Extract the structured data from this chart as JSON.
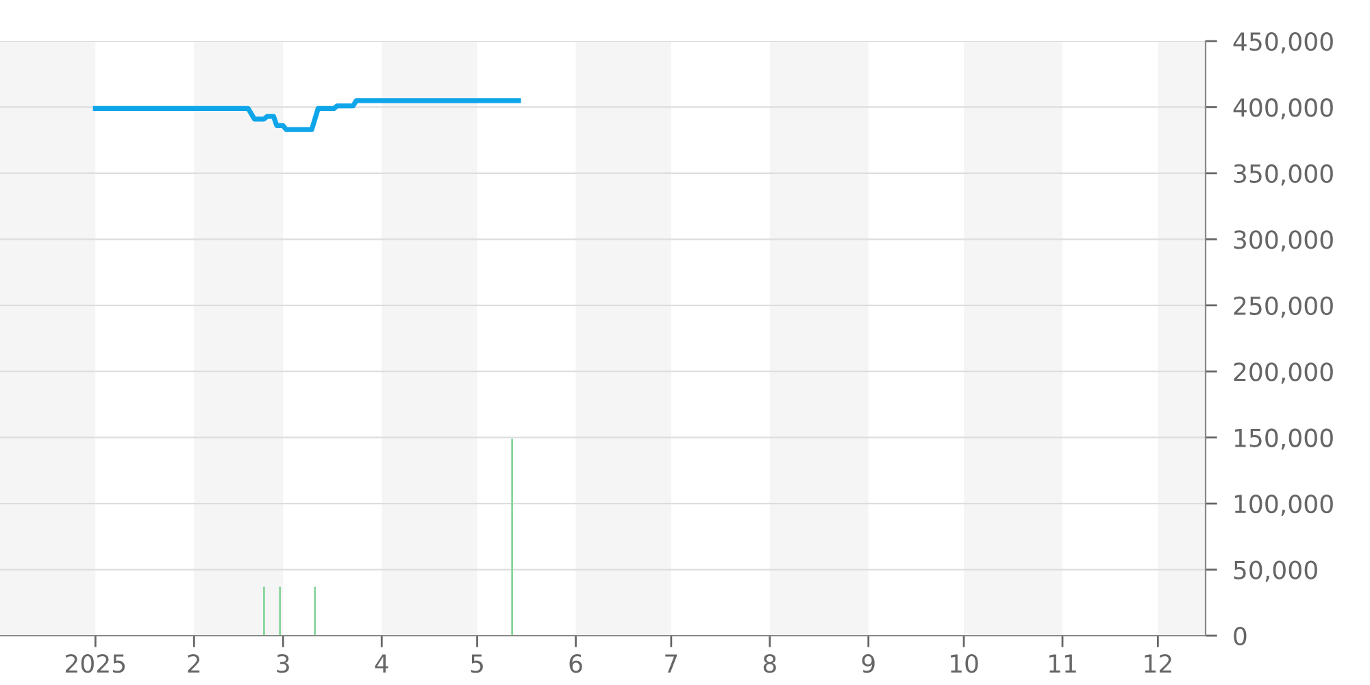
{
  "chart_data": {
    "type": "line",
    "series": [
      {
        "color": "#0ea5e9",
        "x": [
          "2025-01-01",
          "2025-02-18",
          "2025-02-20",
          "2025-02-23",
          "2025-02-24",
          "2025-02-26",
          "2025-02-27",
          "2025-03-01",
          "2025-03-02",
          "2025-03-10",
          "2025-03-12",
          "2025-03-17",
          "2025-03-18",
          "2025-03-23",
          "2025-03-24",
          "2025-05-14"
        ],
        "values": [
          399000,
          399000,
          391000,
          391000,
          393000,
          393000,
          386000,
          386000,
          383000,
          383000,
          399000,
          399000,
          401000,
          401000,
          405000,
          405000
        ]
      },
      {
        "type": "bar",
        "color": "#86d49a",
        "x": [
          "2025-02-23",
          "2025-02-28",
          "2025-03-11",
          "2025-05-12"
        ],
        "values": [
          37000,
          37000,
          37000,
          149000
        ]
      }
    ],
    "xlim": [
      "2024-12-02",
      "2025-12-16"
    ],
    "xticks": [
      {
        "value": "2025-01-01",
        "label": "2025"
      },
      {
        "value": "2025-02-01",
        "label": "2"
      },
      {
        "value": "2025-03-01",
        "label": "3"
      },
      {
        "value": "2025-04-01",
        "label": "4"
      },
      {
        "value": "2025-05-01",
        "label": "5"
      },
      {
        "value": "2025-06-01",
        "label": "6"
      },
      {
        "value": "2025-07-01",
        "label": "7"
      },
      {
        "value": "2025-08-01",
        "label": "8"
      },
      {
        "value": "2025-09-01",
        "label": "9"
      },
      {
        "value": "2025-10-01",
        "label": "10"
      },
      {
        "value": "2025-11-01",
        "label": "11"
      },
      {
        "value": "2025-12-01",
        "label": "12"
      }
    ],
    "ylim": [
      0,
      450000
    ],
    "yticks": [
      {
        "value": 0,
        "label": "0"
      },
      {
        "value": 50000,
        "label": "50,000"
      },
      {
        "value": 100000,
        "label": "100,000"
      },
      {
        "value": 150000,
        "label": "150,000"
      },
      {
        "value": 200000,
        "label": "200,000"
      },
      {
        "value": 250000,
        "label": "250,000"
      },
      {
        "value": 300000,
        "label": "300,000"
      },
      {
        "value": 350000,
        "label": "350,000"
      },
      {
        "value": 400000,
        "label": "400,000"
      },
      {
        "value": 450000,
        "label": "450,000"
      }
    ],
    "bands": [
      {
        "axis": "x",
        "from": "2024-12-02",
        "to": "2025-01-01",
        "color": "#f5f5f5"
      },
      {
        "axis": "x",
        "from": "2025-02-01",
        "to": "2025-03-01",
        "color": "#f5f5f5"
      },
      {
        "axis": "x",
        "from": "2025-04-01",
        "to": "2025-05-01",
        "color": "#f5f5f5"
      },
      {
        "axis": "x",
        "from": "2025-06-01",
        "to": "2025-07-01",
        "color": "#f5f5f5"
      },
      {
        "axis": "x",
        "from": "2025-08-01",
        "to": "2025-09-01",
        "color": "#f5f5f5"
      },
      {
        "axis": "x",
        "from": "2025-10-01",
        "to": "2025-11-01",
        "color": "#f5f5f5"
      },
      {
        "axis": "x",
        "from": "2025-12-01",
        "to": "2025-12-16",
        "color": "#f5f5f5"
      }
    ],
    "grid": "y",
    "marker": "none",
    "line_style": "solid",
    "legend": false
  }
}
